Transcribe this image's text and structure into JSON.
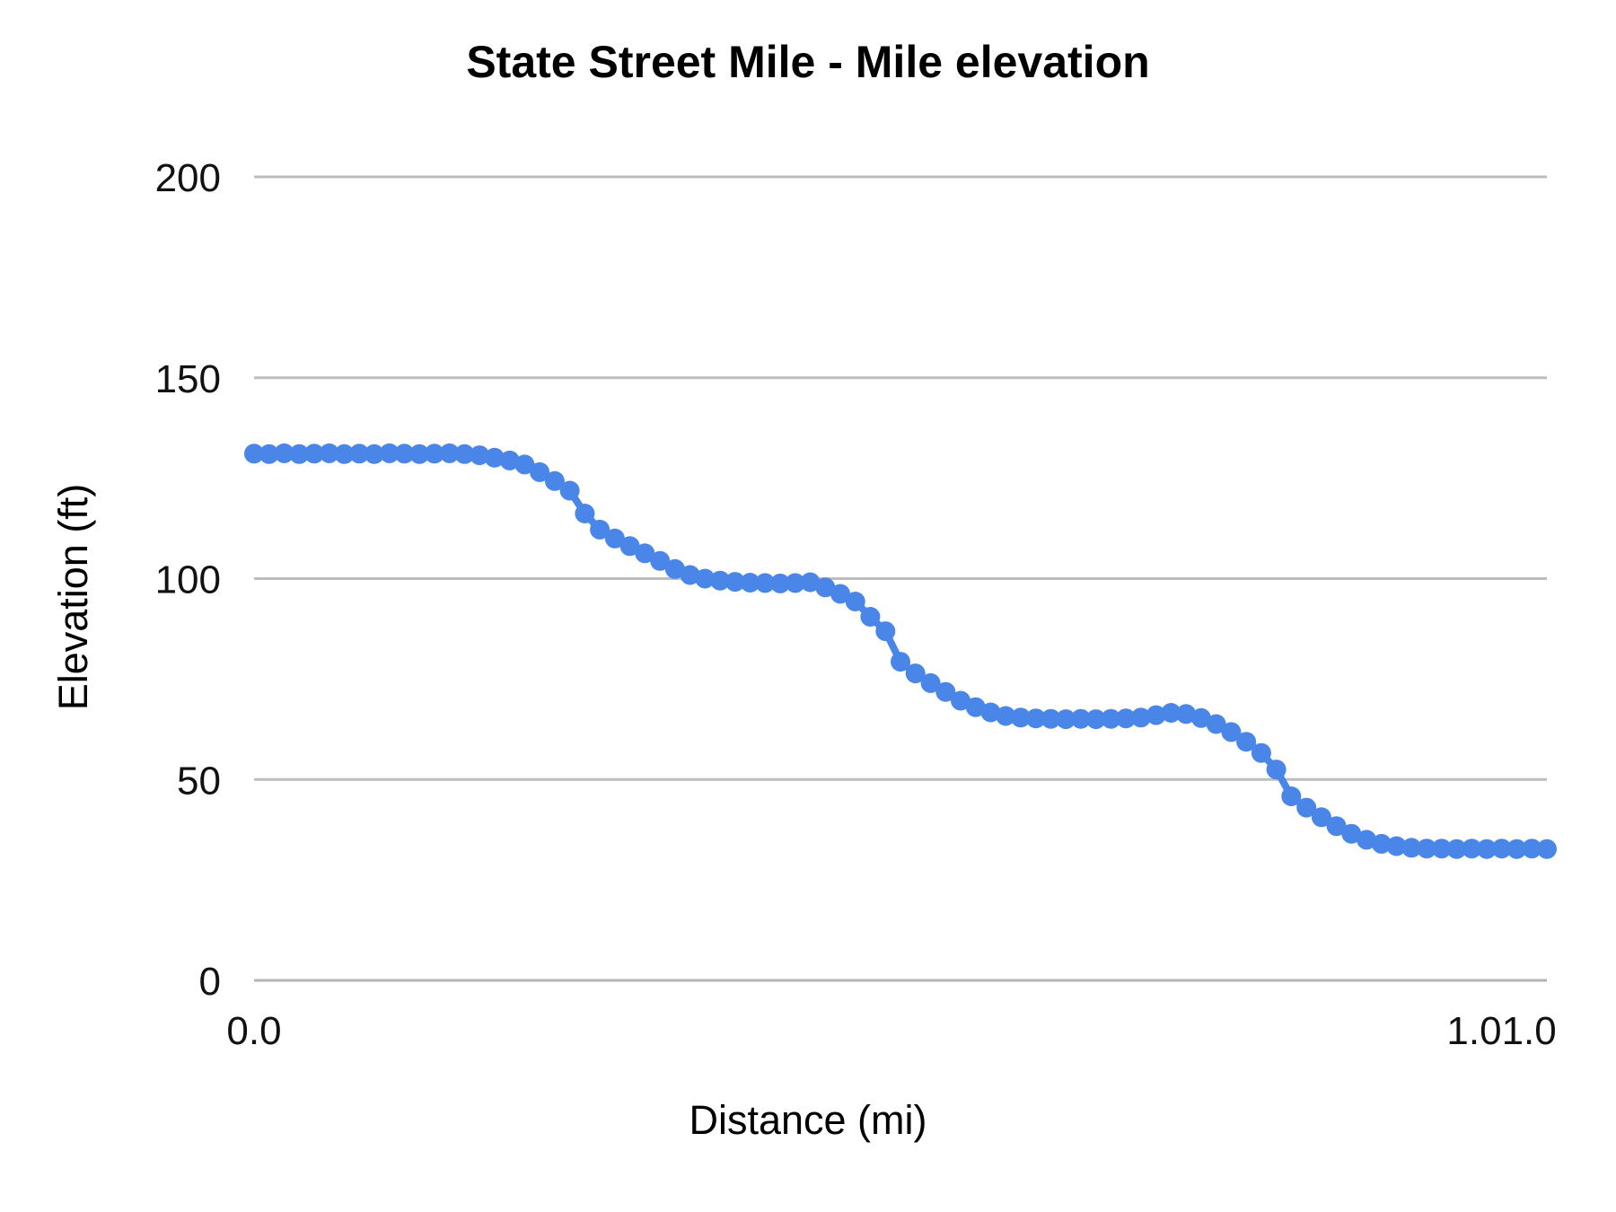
{
  "chart_data": {
    "type": "scatter",
    "title": "State Street Mile - Mile elevation",
    "xlabel": "Distance (mi)",
    "ylabel": "Elevation (ft)",
    "xlim": [
      0.0,
      1.0
    ],
    "ylim": [
      0,
      200
    ],
    "grid": true,
    "legend": "none",
    "marker_color": "#4a86e8",
    "gridline_color": "#bdbdbd",
    "baseline_color": "#b3b3b3",
    "yticks": [
      0,
      50,
      100,
      150,
      200
    ],
    "ytick_labels": [
      "0",
      "50",
      "100",
      "150",
      "200"
    ],
    "xticks": [
      {
        "label": "0.0",
        "pos": 0.0
      },
      {
        "label": "1.01.0",
        "pos": 0.965
      }
    ],
    "series": [
      {
        "name": "Mile elevation",
        "x": [
          0.0,
          0.0116,
          0.0233,
          0.0349,
          0.0465,
          0.0581,
          0.0698,
          0.0814,
          0.093,
          0.1047,
          0.1163,
          0.1279,
          0.1395,
          0.1512,
          0.1628,
          0.1744,
          0.186,
          0.1977,
          0.2093,
          0.2209,
          0.2326,
          0.2442,
          0.2558,
          0.2674,
          0.2791,
          0.2907,
          0.3023,
          0.314,
          0.3256,
          0.3372,
          0.3488,
          0.3605,
          0.3721,
          0.3837,
          0.3953,
          0.407,
          0.4186,
          0.4302,
          0.4419,
          0.4535,
          0.4651,
          0.4767,
          0.4884,
          0.5,
          0.5116,
          0.5233,
          0.5349,
          0.5465,
          0.5581,
          0.5698,
          0.5814,
          0.593,
          0.6047,
          0.6163,
          0.6279,
          0.6395,
          0.6512,
          0.6628,
          0.6744,
          0.686,
          0.6977,
          0.7093,
          0.7209,
          0.7326,
          0.7442,
          0.7558,
          0.7674,
          0.7791,
          0.7907,
          0.8023,
          0.814,
          0.8256,
          0.8372,
          0.8488,
          0.8605,
          0.8721,
          0.8837,
          0.8953,
          0.907,
          0.9186,
          0.9302,
          0.9419,
          0.9535,
          0.9651,
          0.9767,
          0.9884,
          1.0
        ],
        "y": [
          131.1,
          131.0,
          131.2,
          131.0,
          131.1,
          131.2,
          131.0,
          131.1,
          131.0,
          131.2,
          131.1,
          131.0,
          131.1,
          131.2,
          131.0,
          130.7,
          130.1,
          129.4,
          128.4,
          126.5,
          124.3,
          121.9,
          116.2,
          112.2,
          110.0,
          108.1,
          106.3,
          104.4,
          102.4,
          100.9,
          100.0,
          99.5,
          99.2,
          99.0,
          98.9,
          98.8,
          98.9,
          99.1,
          97.8,
          96.2,
          94.3,
          90.5,
          86.9,
          79.3,
          76.4,
          74.0,
          71.8,
          69.6,
          68.0,
          66.7,
          65.8,
          65.4,
          65.2,
          65.1,
          65.0,
          65.1,
          65.0,
          65.1,
          65.2,
          65.4,
          66.0,
          66.6,
          66.3,
          65.3,
          63.8,
          61.8,
          59.4,
          56.6,
          52.5,
          45.8,
          43.0,
          40.6,
          38.4,
          36.5,
          35.0,
          34.0,
          33.4,
          33.0,
          32.8,
          32.8,
          32.7,
          32.8,
          32.7,
          32.8,
          32.7,
          32.8,
          32.7
        ]
      }
    ]
  }
}
